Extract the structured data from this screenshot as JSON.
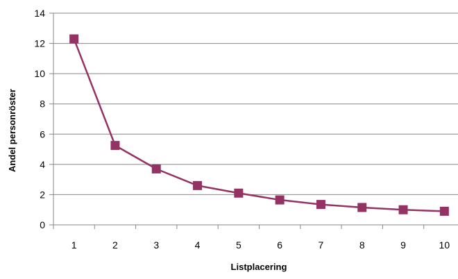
{
  "chart_data": {
    "type": "line",
    "title": "",
    "xlabel": "Listplacering",
    "ylabel": "Andel personröster",
    "categories": [
      "1",
      "2",
      "3",
      "4",
      "5",
      "6",
      "7",
      "8",
      "9",
      "10"
    ],
    "series": [
      {
        "values": [
          12.3,
          5.25,
          3.7,
          2.6,
          2.1,
          1.65,
          1.35,
          1.15,
          1.0,
          0.9
        ]
      }
    ],
    "ylim": [
      0,
      14
    ],
    "yticks": [
      0,
      2,
      4,
      6,
      8,
      10,
      12,
      14
    ],
    "grid": true,
    "legend": "none",
    "series_color": "#953264",
    "marker": "square"
  }
}
